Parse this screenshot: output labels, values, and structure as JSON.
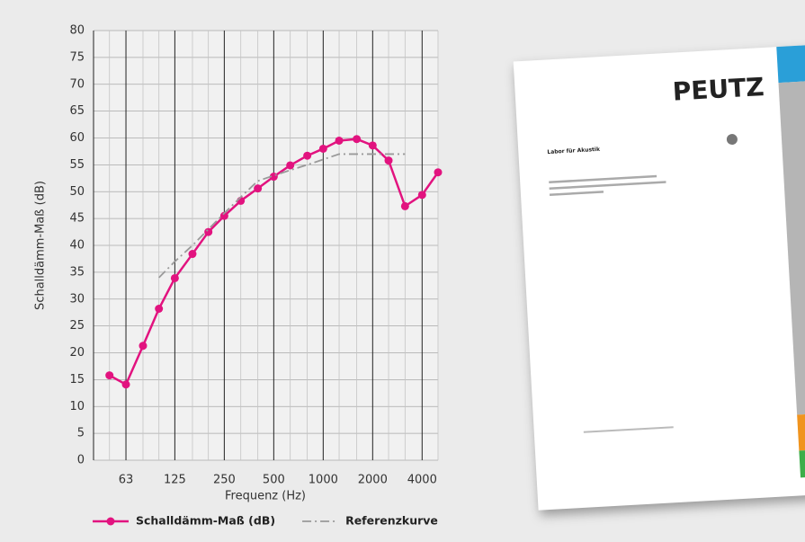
{
  "chart_data": {
    "type": "line",
    "x_scale": "log",
    "x": [
      50,
      63,
      80,
      100,
      125,
      160,
      200,
      250,
      315,
      400,
      500,
      630,
      800,
      1000,
      1250,
      1600,
      2000,
      2500,
      3150,
      4000,
      5000
    ],
    "xlim": [
      40,
      5000
    ],
    "xticks": [
      63,
      125,
      250,
      500,
      1000,
      2000,
      4000
    ],
    "ylim": [
      0,
      80
    ],
    "yticks": [
      0,
      5,
      10,
      15,
      20,
      25,
      30,
      35,
      40,
      45,
      50,
      55,
      60,
      65,
      70,
      75,
      80
    ],
    "xlabel": "Frequenz (Hz)",
    "ylabel": "Schalldämm-Maß (dB)",
    "grid": true,
    "series": [
      {
        "name": "Schalldämm-Maß (dB)",
        "color": "#e2137f",
        "marker": true,
        "values": [
          15.8,
          14.1,
          21.3,
          28.2,
          33.9,
          38.4,
          42.5,
          45.5,
          48.3,
          50.6,
          52.8,
          54.9,
          56.7,
          58,
          59.5,
          59.8,
          58.6,
          55.8,
          47.3,
          49.4,
          53.6
        ]
      },
      {
        "name": "Referenzkurve",
        "color": "#9a9a9a",
        "dash": "dashdot",
        "values": [
          null,
          null,
          null,
          34,
          37,
          40,
          43,
          46,
          49,
          52,
          53,
          54,
          55,
          56,
          57,
          57,
          57,
          57,
          57,
          null,
          null
        ]
      }
    ]
  },
  "document": {
    "brand": "PEUTZ",
    "heading": "Labor für Akustik"
  }
}
